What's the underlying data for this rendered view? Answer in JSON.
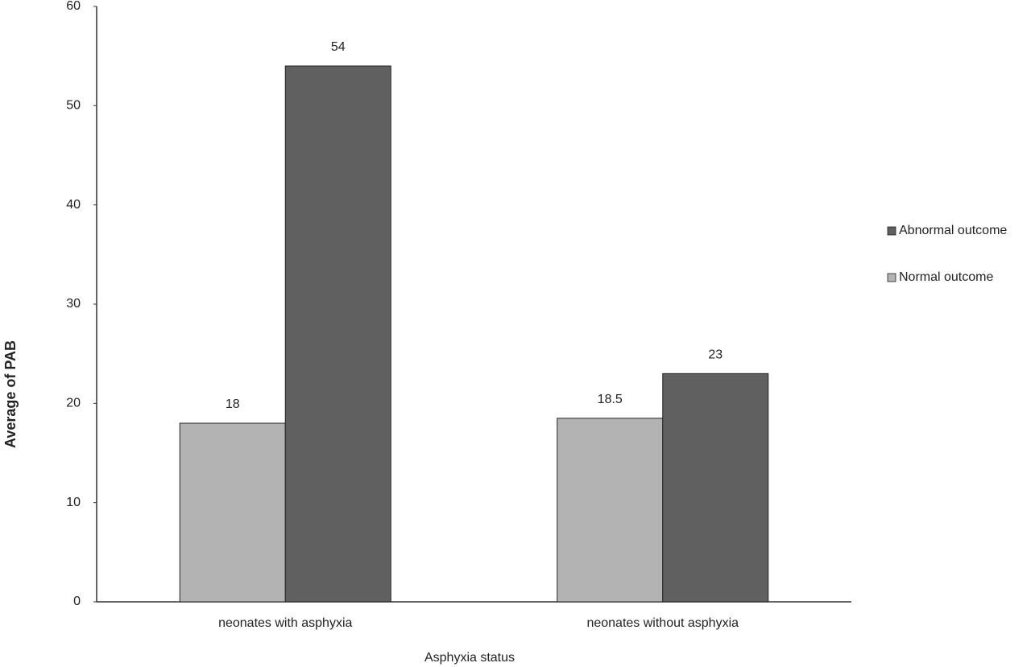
{
  "chart_data": {
    "type": "bar",
    "x_label": "Asphyxia status",
    "y_label": "Average of PAB",
    "categories": [
      "neonates with asphyxia",
      "neonates without asphyxia"
    ],
    "series": [
      {
        "name": "Normal outcome",
        "color": "#b3b3b3",
        "values": [
          18,
          18.5
        ]
      },
      {
        "name": "Abnormal outcome",
        "color": "#606060",
        "values": [
          54,
          23
        ]
      }
    ],
    "ylim": [
      0,
      60
    ],
    "yticks": [
      0,
      10,
      20,
      30,
      40,
      50,
      60
    ],
    "grid": false,
    "legend": "right"
  }
}
